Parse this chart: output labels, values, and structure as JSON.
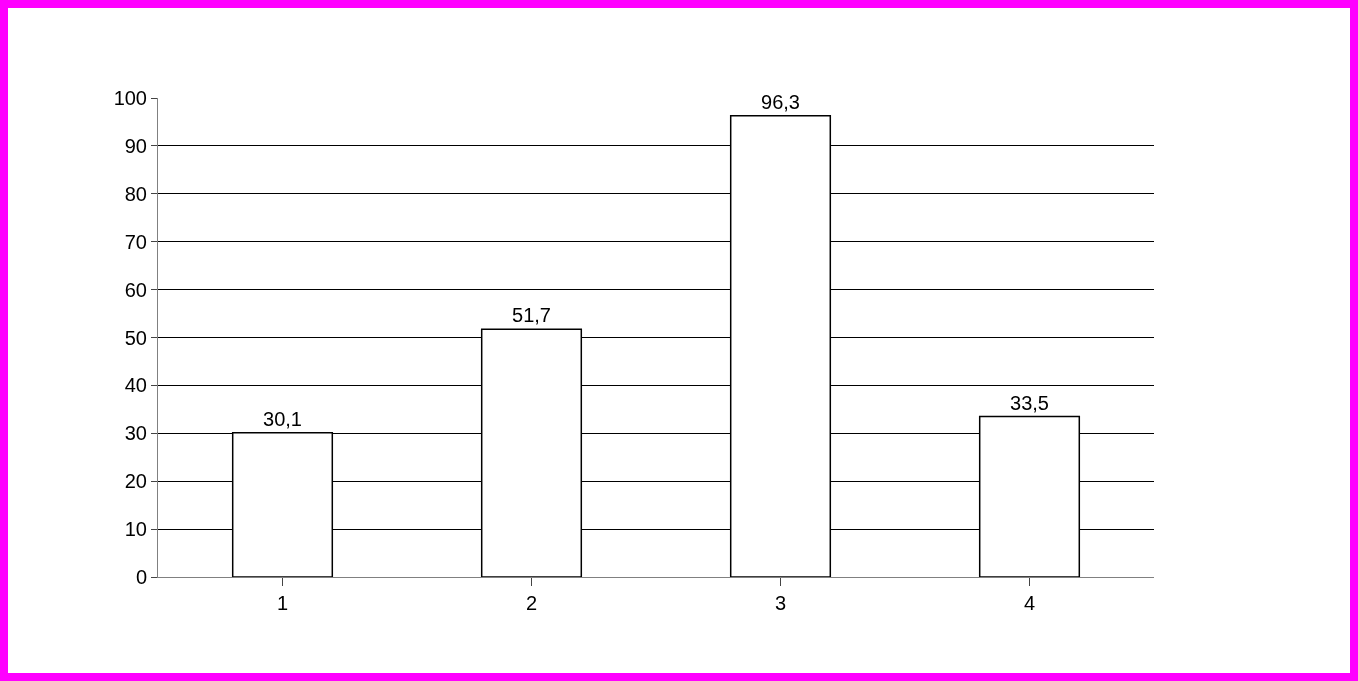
{
  "chart_data": {
    "type": "bar",
    "categories": [
      "1",
      "2",
      "3",
      "4"
    ],
    "values": [
      30.1,
      51.7,
      96.3,
      33.5
    ],
    "value_labels": [
      "30,1",
      "51,7",
      "96,3",
      "33,5"
    ],
    "color": "#ffffff",
    "ylim": [
      0,
      100
    ],
    "yticks": [
      0,
      10,
      20,
      30,
      40,
      50,
      60,
      70,
      80,
      90,
      100
    ],
    "grid": "y"
  }
}
